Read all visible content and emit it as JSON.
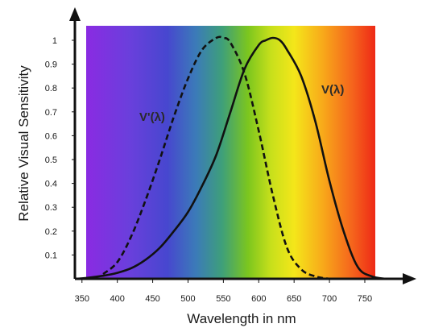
{
  "chart_data": {
    "type": "line",
    "title": "",
    "xlabel": "Wavelength in nm",
    "ylabel": "Relative Visual Sensitivity",
    "xlim": [
      340,
      790
    ],
    "ylim": [
      0,
      1.1
    ],
    "x_ticks": [
      350,
      400,
      450,
      500,
      550,
      600,
      650,
      700,
      750
    ],
    "y_ticks": [
      0.1,
      0.2,
      0.3,
      0.4,
      0.5,
      0.6,
      0.7,
      0.8,
      0.9,
      1
    ],
    "background": "visible spectrum gradient from violet (about 350 nm) to red (about 755 nm)",
    "series": [
      {
        "name": "V(λ)",
        "style": "solid",
        "color": "#111111",
        "x": [
          340,
          360,
          380,
          400,
          420,
          440,
          460,
          480,
          500,
          520,
          540,
          560,
          580,
          600,
          610,
          620,
          630,
          640,
          660,
          680,
          700,
          720,
          740,
          760,
          780
        ],
        "y": [
          0.0,
          0.005,
          0.013,
          0.025,
          0.045,
          0.08,
          0.13,
          0.2,
          0.28,
          0.39,
          0.52,
          0.7,
          0.88,
          0.98,
          1.0,
          1.01,
          1.0,
          0.96,
          0.85,
          0.66,
          0.41,
          0.2,
          0.05,
          0.01,
          0.0
        ]
      },
      {
        "name": "V'(λ)",
        "style": "dashed",
        "color": "#111111",
        "x": [
          380,
          400,
          420,
          440,
          460,
          480,
          500,
          520,
          540,
          550,
          560,
          580,
          600,
          620,
          640,
          660,
          680,
          700
        ],
        "y": [
          0.02,
          0.07,
          0.18,
          0.33,
          0.5,
          0.68,
          0.84,
          0.96,
          1.01,
          1.01,
          0.99,
          0.86,
          0.62,
          0.35,
          0.13,
          0.04,
          0.01,
          0.0
        ]
      }
    ]
  }
}
